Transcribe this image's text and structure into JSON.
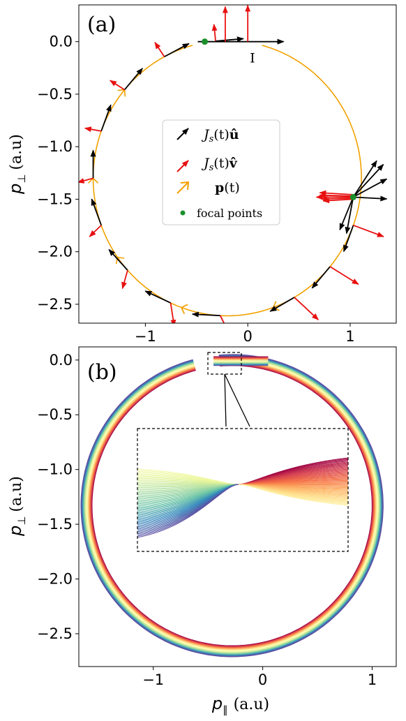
{
  "chart_data": [
    {
      "type": "line",
      "panel_label": "(a)",
      "xlim": [
        -1.65,
        1.45
      ],
      "ylim": [
        -2.68,
        0.35
      ],
      "xticks": [
        -1,
        0,
        1
      ],
      "xtick_labels": [
        "−1",
        "0",
        "1"
      ],
      "yticks": [
        0.0,
        -0.5,
        -1.0,
        -1.5,
        -2.0,
        -2.5
      ],
      "ytick_labels": [
        "0.0",
        "−0.5",
        "−1.0",
        "−1.5",
        "−2.0",
        "−2.5"
      ],
      "ylabel_main": "p",
      "ylabel_sub": "⊥",
      "ylabel_unit": "(a.u)",
      "trajectory": {
        "center": [
          -0.2,
          -1.3
        ],
        "radius": 1.31,
        "start_angle_deg": 75,
        "end_angle_deg": -255,
        "color": "#f2a100"
      },
      "annotation_I": "I",
      "focal_points": [
        {
          "x": -0.42,
          "y": 0.0
        },
        {
          "x": 1.03,
          "y": -1.48
        }
      ],
      "focal_color": "#1a8f2a",
      "u_color": "#000000",
      "v_color": "#e81010",
      "legend": [
        {
          "label": "Jₛ(t)û",
          "base": "J",
          "sub": "s",
          "rest": "(t)",
          "bold": "û"
        },
        {
          "label": "Jₛ(t)v̂",
          "base": "J",
          "sub": "s",
          "rest": "(t)",
          "bold": "v̂"
        },
        {
          "label": "p(t)",
          "base": "",
          "sub": "",
          "rest": "(t)",
          "bold": "p"
        },
        {
          "label": "focal points",
          "text": "focal points"
        }
      ]
    },
    {
      "type": "line",
      "panel_label": "(b)",
      "xlim": [
        -1.68,
        1.22
      ],
      "ylim": [
        -2.8,
        0.12
      ],
      "xticks": [
        -1,
        0,
        1
      ],
      "xtick_labels": [
        "−1",
        "0",
        "1"
      ],
      "yticks": [
        0.0,
        -0.5,
        -1.0,
        -1.5,
        -2.0,
        -2.5
      ],
      "ytick_labels": [
        "0.0",
        "−0.5",
        "−1.0",
        "−1.5",
        "−2.0",
        "−2.5"
      ],
      "xlabel_main": "p",
      "xlabel_sub": "∥",
      "xlabel_unit": "(a.u)",
      "ylabel_main": "p",
      "ylabel_sub": "⊥",
      "ylabel_unit": "(a.u)",
      "colormap": "Spectral",
      "inset": true
    }
  ]
}
